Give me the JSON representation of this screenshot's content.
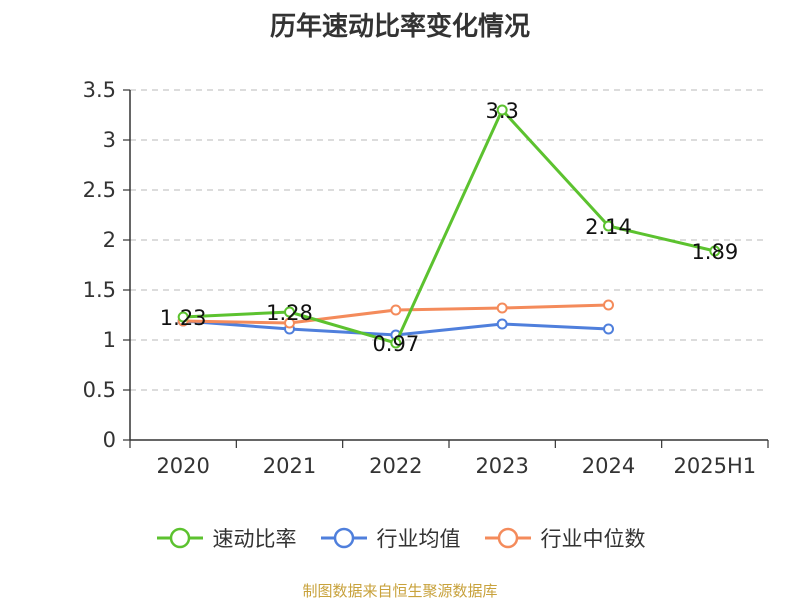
{
  "title": "历年速动比率变化情况",
  "source": "制图数据来自恒生聚源数据库",
  "chart_data": {
    "type": "line",
    "title": "历年速动比率变化情况",
    "categories": [
      "2020",
      "2021",
      "2022",
      "2023",
      "2024",
      "2025H1"
    ],
    "ylim": [
      0,
      3.5
    ],
    "yticks": [
      "0",
      "0.5",
      "1",
      "1.5",
      "2",
      "2.5",
      "3",
      "3.5"
    ],
    "grid": true,
    "legend_position": "bottom",
    "series": [
      {
        "name": "速动比率",
        "color": "#5cc22f",
        "values": [
          1.23,
          1.28,
          0.97,
          3.3,
          2.14,
          1.89
        ],
        "labels": [
          "1.23",
          "1.28",
          "0.97",
          "3.3",
          "2.14",
          "1.89"
        ]
      },
      {
        "name": "行业均值",
        "color": "#4f7fdc",
        "values": [
          1.19,
          1.11,
          1.05,
          1.16,
          1.11,
          null
        ]
      },
      {
        "name": "行业中位数",
        "color": "#f48b5b",
        "values": [
          1.19,
          1.17,
          1.3,
          1.32,
          1.35,
          null
        ]
      }
    ]
  }
}
